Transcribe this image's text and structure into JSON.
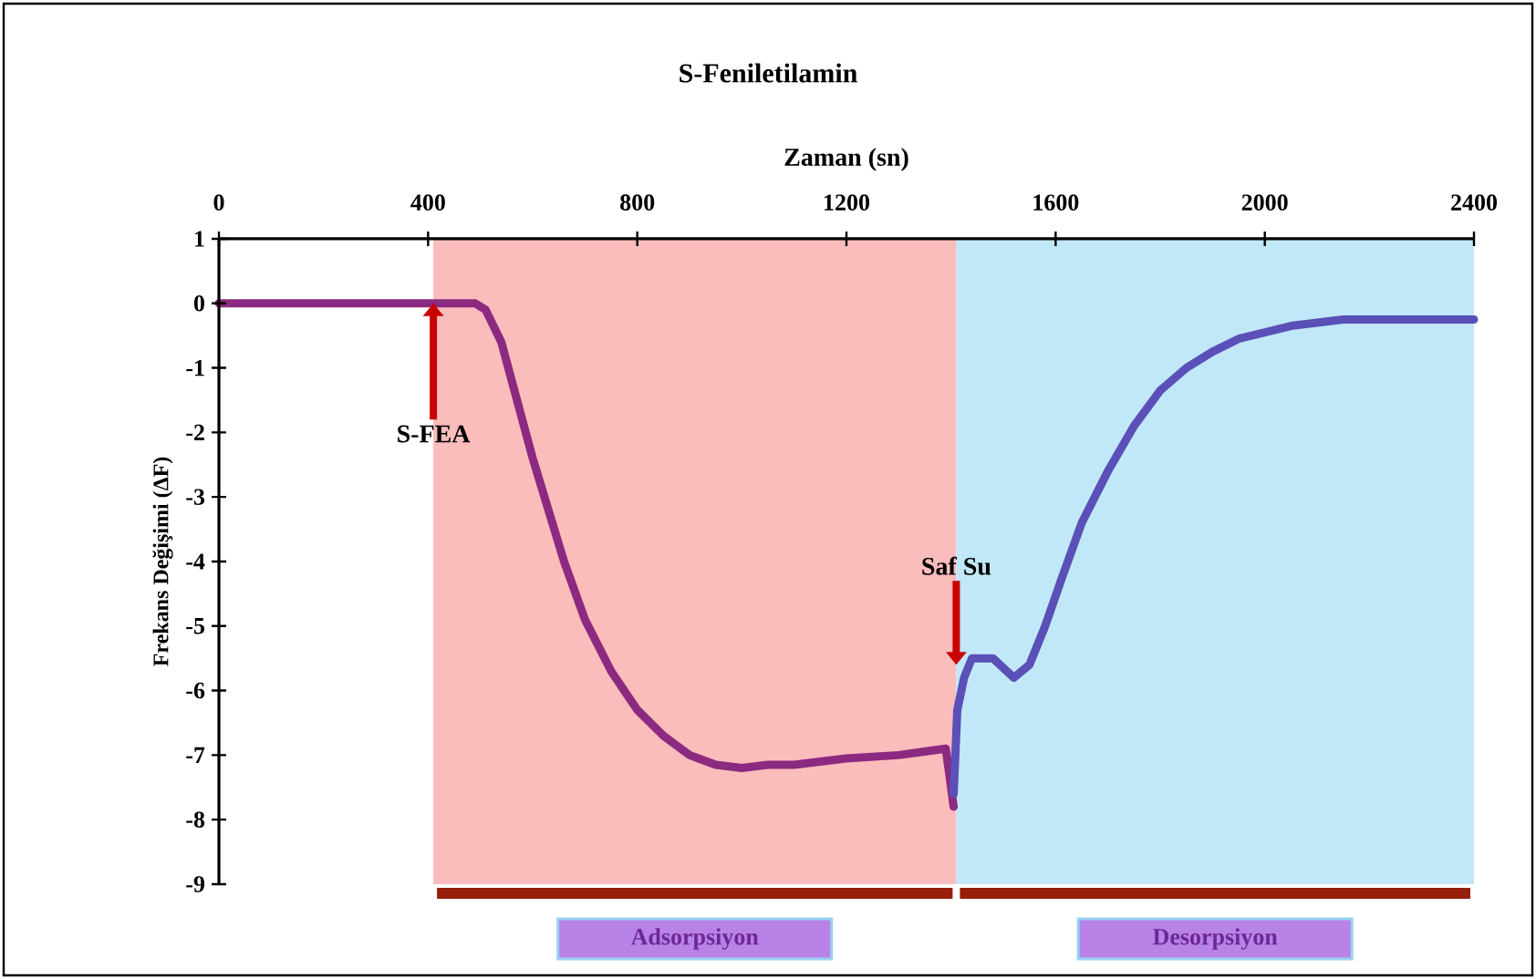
{
  "chart_data": {
    "type": "line",
    "title": "S-Feniletilamin",
    "xlabel": "Zaman (sn)",
    "ylabel": "Frekans Değişimi (ΔF)",
    "xlim": [
      0,
      2400
    ],
    "xticks": [
      0,
      400,
      800,
      1200,
      1600,
      2000,
      2400
    ],
    "ylim": [
      -9,
      1
    ],
    "yticks": [
      -9,
      -8,
      -7,
      -6,
      -5,
      -4,
      -3,
      -2,
      -1,
      0,
      1
    ],
    "grid": false,
    "marker": "none",
    "line_style": "solid",
    "series": [
      {
        "color": "#8b2a80",
        "x": [
          0,
          400,
          490,
          510,
          540,
          570,
          600,
          630,
          660,
          700,
          750,
          800,
          850,
          900,
          950,
          1000,
          1050,
          1100,
          1200,
          1300,
          1390,
          1405
        ],
        "values": [
          0,
          0,
          0,
          -0.1,
          -0.6,
          -1.5,
          -2.4,
          -3.2,
          -4.0,
          -4.9,
          -5.7,
          -6.3,
          -6.7,
          -7.0,
          -7.15,
          -7.2,
          -7.15,
          -7.15,
          -7.05,
          -7.0,
          -6.9,
          -7.8
        ]
      },
      {
        "color": "#5a50b8",
        "x": [
          1405,
          1412,
          1425,
          1440,
          1480,
          1520,
          1550,
          1580,
          1610,
          1650,
          1700,
          1750,
          1800,
          1850,
          1900,
          1950,
          2000,
          2050,
          2100,
          2150,
          2400
        ],
        "values": [
          -7.6,
          -6.3,
          -5.8,
          -5.5,
          -5.5,
          -5.8,
          -5.6,
          -5.0,
          -4.3,
          -3.4,
          -2.6,
          -1.9,
          -1.35,
          -1.0,
          -0.75,
          -0.55,
          -0.45,
          -0.35,
          -0.3,
          -0.25,
          -0.25
        ]
      }
    ],
    "bands": [
      {
        "axis": "x",
        "from": 410,
        "to": 1410,
        "label": "Adsorpsiyon",
        "color": "#fbbcbc"
      },
      {
        "axis": "x",
        "from": 1410,
        "to": 2400,
        "label": "Desorpsiyon",
        "color": "#c1e8f8"
      }
    ],
    "annotations": [
      {
        "text": "S-FEA",
        "x": 410,
        "y": 0
      },
      {
        "text": "Saf Su",
        "x": 1410,
        "y": -5.6
      }
    ]
  }
}
